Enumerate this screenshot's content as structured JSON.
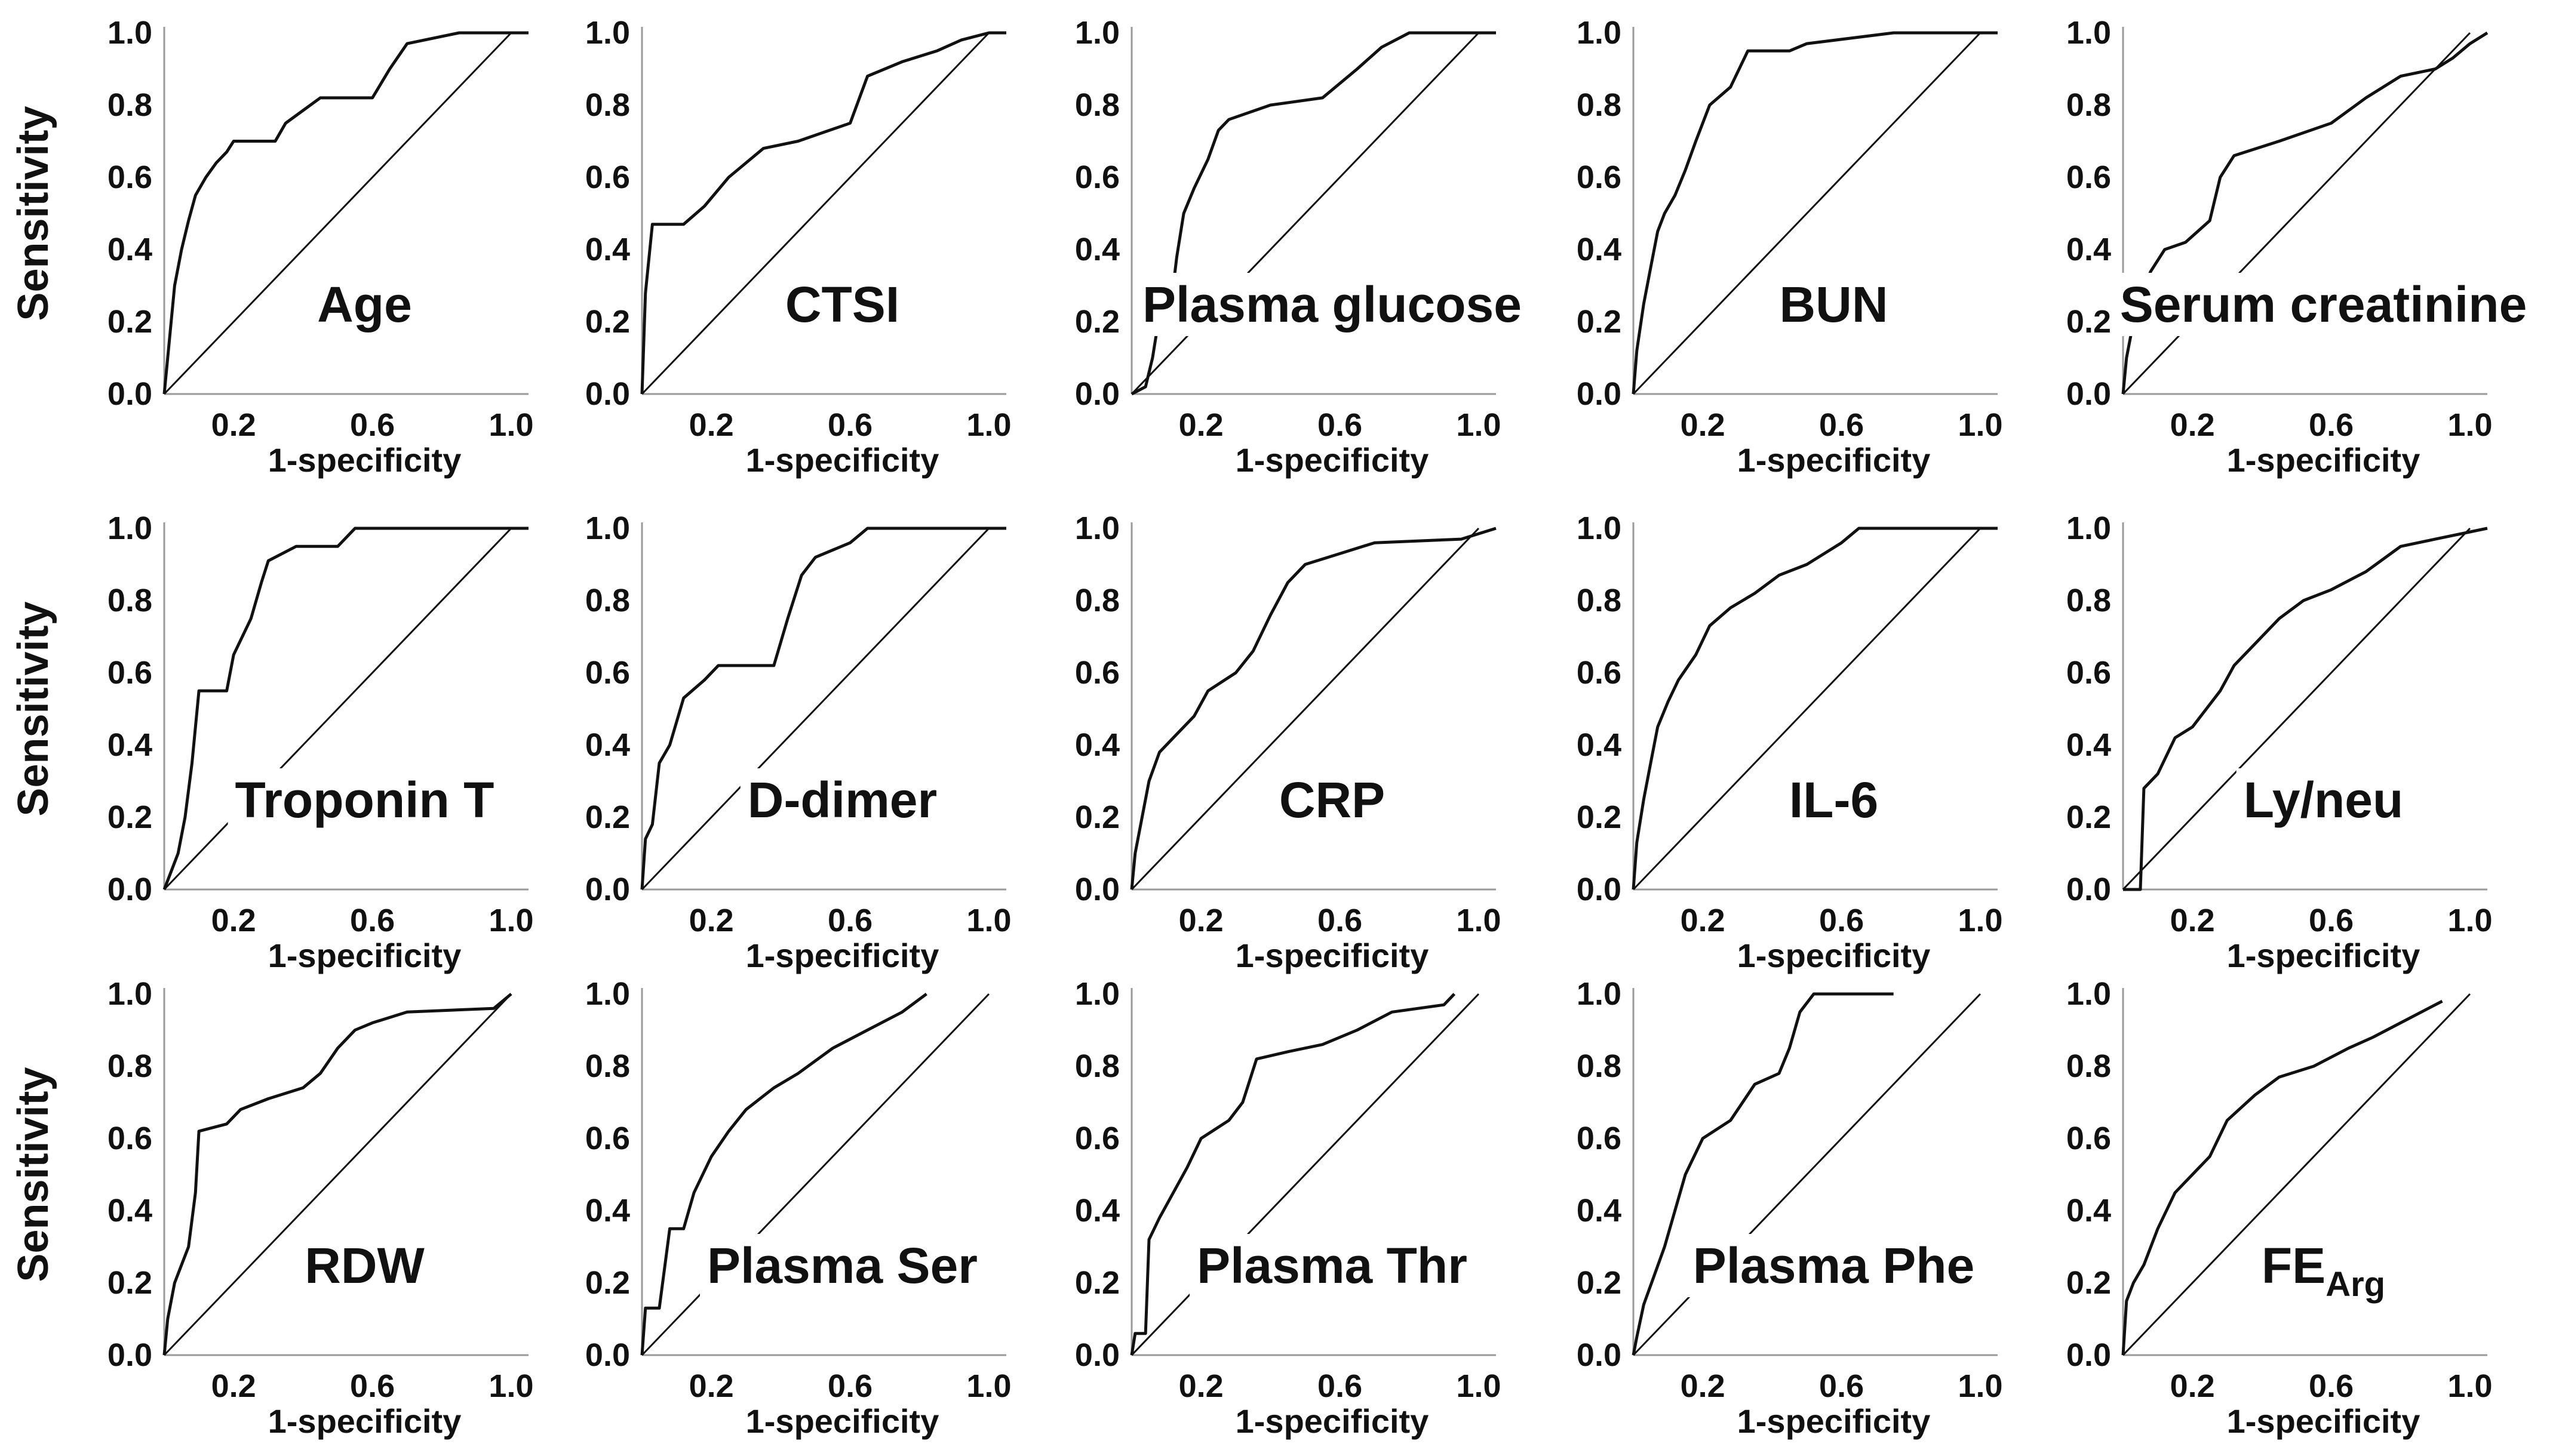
{
  "chart_data": {
    "type": "line",
    "figure": "ROC curves (3x5 grid)",
    "ylabel": "Sensitivity",
    "xlabel": "1-specificity",
    "x_ticks": [
      "0.2",
      "0.6",
      "1.0"
    ],
    "x_tick_values": [
      0.2,
      0.6,
      1.0
    ],
    "y_ticks": [
      "0.0",
      "0.2",
      "0.4",
      "0.6",
      "0.8",
      "1.0"
    ],
    "y_tick_values": [
      0.0,
      0.2,
      0.4,
      0.6,
      0.8,
      1.0
    ],
    "xlim": [
      0,
      1.05
    ],
    "ylim": [
      0,
      1.0
    ],
    "panels": [
      {
        "label": "Age",
        "curve": [
          [
            0,
            0
          ],
          [
            0.01,
            0.1
          ],
          [
            0.02,
            0.2
          ],
          [
            0.03,
            0.3
          ],
          [
            0.05,
            0.4
          ],
          [
            0.07,
            0.48
          ],
          [
            0.09,
            0.55
          ],
          [
            0.12,
            0.6
          ],
          [
            0.15,
            0.64
          ],
          [
            0.18,
            0.67
          ],
          [
            0.2,
            0.7
          ],
          [
            0.32,
            0.7
          ],
          [
            0.35,
            0.75
          ],
          [
            0.45,
            0.82
          ],
          [
            0.6,
            0.82
          ],
          [
            0.65,
            0.9
          ],
          [
            0.7,
            0.97
          ],
          [
            0.85,
            1.0
          ],
          [
            1.05,
            1.0
          ]
        ]
      },
      {
        "label": "CTSI",
        "curve": [
          [
            0,
            0
          ],
          [
            0.01,
            0.28
          ],
          [
            0.03,
            0.47
          ],
          [
            0.12,
            0.47
          ],
          [
            0.18,
            0.52
          ],
          [
            0.25,
            0.6
          ],
          [
            0.35,
            0.68
          ],
          [
            0.45,
            0.7
          ],
          [
            0.6,
            0.75
          ],
          [
            0.65,
            0.88
          ],
          [
            0.75,
            0.92
          ],
          [
            0.85,
            0.95
          ],
          [
            0.92,
            0.98
          ],
          [
            1.0,
            1.0
          ],
          [
            1.05,
            1.0
          ]
        ]
      },
      {
        "label": "Plasma glucose",
        "curve": [
          [
            0,
            0
          ],
          [
            0.04,
            0.02
          ],
          [
            0.06,
            0.1
          ],
          [
            0.08,
            0.22
          ],
          [
            0.11,
            0.22
          ],
          [
            0.13,
            0.38
          ],
          [
            0.15,
            0.5
          ],
          [
            0.18,
            0.57
          ],
          [
            0.22,
            0.65
          ],
          [
            0.25,
            0.73
          ],
          [
            0.28,
            0.76
          ],
          [
            0.4,
            0.8
          ],
          [
            0.55,
            0.82
          ],
          [
            0.65,
            0.9
          ],
          [
            0.72,
            0.96
          ],
          [
            0.8,
            1.0
          ],
          [
            1.05,
            1.0
          ]
        ]
      },
      {
        "label": "BUN",
        "curve": [
          [
            0,
            0
          ],
          [
            0.01,
            0.12
          ],
          [
            0.03,
            0.25
          ],
          [
            0.05,
            0.35
          ],
          [
            0.07,
            0.45
          ],
          [
            0.09,
            0.5
          ],
          [
            0.12,
            0.55
          ],
          [
            0.15,
            0.62
          ],
          [
            0.18,
            0.7
          ],
          [
            0.22,
            0.8
          ],
          [
            0.28,
            0.85
          ],
          [
            0.33,
            0.95
          ],
          [
            0.45,
            0.95
          ],
          [
            0.5,
            0.97
          ],
          [
            0.75,
            1.0
          ],
          [
            1.05,
            1.0
          ]
        ]
      },
      {
        "label": "Serum creatinine",
        "curve": [
          [
            0,
            0
          ],
          [
            0.01,
            0.1
          ],
          [
            0.03,
            0.2
          ],
          [
            0.05,
            0.28
          ],
          [
            0.08,
            0.34
          ],
          [
            0.12,
            0.4
          ],
          [
            0.18,
            0.42
          ],
          [
            0.25,
            0.48
          ],
          [
            0.28,
            0.6
          ],
          [
            0.32,
            0.66
          ],
          [
            0.45,
            0.7
          ],
          [
            0.6,
            0.75
          ],
          [
            0.7,
            0.82
          ],
          [
            0.8,
            0.88
          ],
          [
            0.9,
            0.9
          ],
          [
            0.95,
            0.93
          ],
          [
            1.0,
            0.97
          ],
          [
            1.05,
            1.0
          ]
        ]
      },
      {
        "label": "Troponin T",
        "curve": [
          [
            0,
            0
          ],
          [
            0.02,
            0.05
          ],
          [
            0.04,
            0.1
          ],
          [
            0.06,
            0.2
          ],
          [
            0.08,
            0.35
          ],
          [
            0.1,
            0.55
          ],
          [
            0.18,
            0.55
          ],
          [
            0.2,
            0.65
          ],
          [
            0.25,
            0.75
          ],
          [
            0.28,
            0.85
          ],
          [
            0.3,
            0.91
          ],
          [
            0.38,
            0.95
          ],
          [
            0.5,
            0.95
          ],
          [
            0.55,
            1.0
          ],
          [
            1.05,
            1.0
          ]
        ]
      },
      {
        "label": "D-dimer",
        "curve": [
          [
            0,
            0
          ],
          [
            0.01,
            0.14
          ],
          [
            0.03,
            0.18
          ],
          [
            0.05,
            0.35
          ],
          [
            0.08,
            0.4
          ],
          [
            0.12,
            0.53
          ],
          [
            0.18,
            0.58
          ],
          [
            0.22,
            0.62
          ],
          [
            0.38,
            0.62
          ],
          [
            0.42,
            0.75
          ],
          [
            0.46,
            0.87
          ],
          [
            0.5,
            0.92
          ],
          [
            0.6,
            0.96
          ],
          [
            0.65,
            1.0
          ],
          [
            1.05,
            1.0
          ]
        ]
      },
      {
        "label": "CRP",
        "curve": [
          [
            0,
            0
          ],
          [
            0.01,
            0.1
          ],
          [
            0.03,
            0.2
          ],
          [
            0.05,
            0.3
          ],
          [
            0.08,
            0.38
          ],
          [
            0.12,
            0.42
          ],
          [
            0.18,
            0.48
          ],
          [
            0.22,
            0.55
          ],
          [
            0.3,
            0.6
          ],
          [
            0.35,
            0.66
          ],
          [
            0.4,
            0.76
          ],
          [
            0.45,
            0.85
          ],
          [
            0.5,
            0.9
          ],
          [
            0.6,
            0.93
          ],
          [
            0.7,
            0.96
          ],
          [
            0.95,
            0.97
          ],
          [
            1.05,
            1.0
          ]
        ]
      },
      {
        "label": "IL-6",
        "curve": [
          [
            0,
            0
          ],
          [
            0.01,
            0.13
          ],
          [
            0.03,
            0.25
          ],
          [
            0.05,
            0.35
          ],
          [
            0.07,
            0.45
          ],
          [
            0.1,
            0.52
          ],
          [
            0.13,
            0.58
          ],
          [
            0.18,
            0.65
          ],
          [
            0.22,
            0.73
          ],
          [
            0.28,
            0.78
          ],
          [
            0.35,
            0.82
          ],
          [
            0.42,
            0.87
          ],
          [
            0.5,
            0.9
          ],
          [
            0.6,
            0.96
          ],
          [
            0.65,
            1.0
          ],
          [
            1.05,
            1.0
          ]
        ]
      },
      {
        "label": "Ly/neu",
        "curve": [
          [
            0,
            0
          ],
          [
            0.05,
            0.0
          ],
          [
            0.06,
            0.28
          ],
          [
            0.1,
            0.32
          ],
          [
            0.15,
            0.42
          ],
          [
            0.2,
            0.45
          ],
          [
            0.28,
            0.55
          ],
          [
            0.32,
            0.62
          ],
          [
            0.38,
            0.68
          ],
          [
            0.45,
            0.75
          ],
          [
            0.52,
            0.8
          ],
          [
            0.6,
            0.83
          ],
          [
            0.7,
            0.88
          ],
          [
            0.8,
            0.95
          ],
          [
            0.9,
            0.97
          ],
          [
            1.0,
            0.99
          ],
          [
            1.05,
            1.0
          ]
        ]
      },
      {
        "label": "RDW",
        "curve": [
          [
            0,
            0
          ],
          [
            0.01,
            0.1
          ],
          [
            0.03,
            0.2
          ],
          [
            0.05,
            0.25
          ],
          [
            0.07,
            0.3
          ],
          [
            0.09,
            0.45
          ],
          [
            0.1,
            0.62
          ],
          [
            0.18,
            0.64
          ],
          [
            0.22,
            0.68
          ],
          [
            0.3,
            0.71
          ],
          [
            0.4,
            0.74
          ],
          [
            0.45,
            0.78
          ],
          [
            0.5,
            0.85
          ],
          [
            0.55,
            0.9
          ],
          [
            0.6,
            0.92
          ],
          [
            0.7,
            0.95
          ],
          [
            0.95,
            0.96
          ],
          [
            1.0,
            1.0
          ]
        ]
      },
      {
        "label": "Plasma Ser",
        "curve": [
          [
            0,
            0
          ],
          [
            0.01,
            0.13
          ],
          [
            0.05,
            0.13
          ],
          [
            0.08,
            0.35
          ],
          [
            0.12,
            0.35
          ],
          [
            0.15,
            0.45
          ],
          [
            0.2,
            0.55
          ],
          [
            0.25,
            0.62
          ],
          [
            0.3,
            0.68
          ],
          [
            0.38,
            0.74
          ],
          [
            0.45,
            0.78
          ],
          [
            0.55,
            0.85
          ],
          [
            0.65,
            0.9
          ],
          [
            0.75,
            0.95
          ],
          [
            0.82,
            1.0
          ]
        ]
      },
      {
        "label": "Plasma Thr",
        "curve": [
          [
            0,
            0
          ],
          [
            0.01,
            0.06
          ],
          [
            0.04,
            0.06
          ],
          [
            0.05,
            0.32
          ],
          [
            0.08,
            0.38
          ],
          [
            0.12,
            0.45
          ],
          [
            0.16,
            0.52
          ],
          [
            0.2,
            0.6
          ],
          [
            0.28,
            0.65
          ],
          [
            0.32,
            0.7
          ],
          [
            0.36,
            0.82
          ],
          [
            0.45,
            0.84
          ],
          [
            0.55,
            0.86
          ],
          [
            0.65,
            0.9
          ],
          [
            0.75,
            0.95
          ],
          [
            0.9,
            0.97
          ],
          [
            0.93,
            1.0
          ]
        ]
      },
      {
        "label": "Plasma Phe",
        "curve": [
          [
            0,
            0
          ],
          [
            0.01,
            0.05
          ],
          [
            0.03,
            0.14
          ],
          [
            0.06,
            0.22
          ],
          [
            0.09,
            0.3
          ],
          [
            0.12,
            0.4
          ],
          [
            0.15,
            0.5
          ],
          [
            0.2,
            0.6
          ],
          [
            0.28,
            0.65
          ],
          [
            0.35,
            0.75
          ],
          [
            0.42,
            0.78
          ],
          [
            0.45,
            0.85
          ],
          [
            0.48,
            0.95
          ],
          [
            0.52,
            1.0
          ],
          [
            0.75,
            1.0
          ]
        ]
      },
      {
        "label": "FE",
        "label_sub": "Arg",
        "curve": [
          [
            0,
            0
          ],
          [
            0.01,
            0.15
          ],
          [
            0.03,
            0.2
          ],
          [
            0.06,
            0.25
          ],
          [
            0.1,
            0.35
          ],
          [
            0.15,
            0.45
          ],
          [
            0.2,
            0.5
          ],
          [
            0.25,
            0.55
          ],
          [
            0.3,
            0.65
          ],
          [
            0.38,
            0.72
          ],
          [
            0.45,
            0.77
          ],
          [
            0.55,
            0.8
          ],
          [
            0.65,
            0.85
          ],
          [
            0.72,
            0.88
          ],
          [
            0.8,
            0.92
          ],
          [
            0.88,
            0.96
          ],
          [
            0.92,
            0.98
          ]
        ]
      }
    ],
    "reference_line": "diagonal (chance)"
  }
}
